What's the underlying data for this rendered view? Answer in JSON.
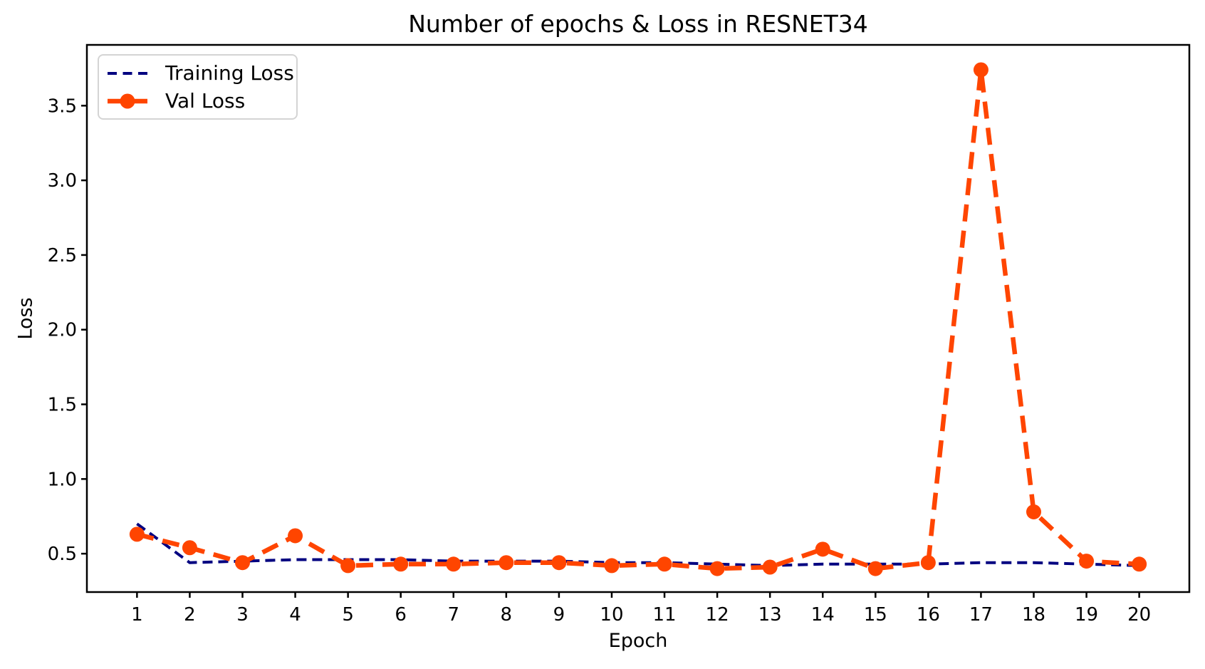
{
  "chart_data": {
    "type": "line",
    "title": "Number of epochs & Loss in RESNET34",
    "xlabel": "Epoch",
    "ylabel": "Loss",
    "x": [
      1,
      2,
      3,
      4,
      5,
      6,
      7,
      8,
      9,
      10,
      11,
      12,
      13,
      14,
      15,
      16,
      17,
      18,
      19,
      20
    ],
    "series": [
      {
        "name": "Training Loss",
        "color": "#000080",
        "line_style": "dashed",
        "line_width": 4,
        "dash": "14 8",
        "marker": "none",
        "values": [
          0.7,
          0.44,
          0.45,
          0.46,
          0.46,
          0.46,
          0.45,
          0.45,
          0.45,
          0.44,
          0.44,
          0.43,
          0.42,
          0.43,
          0.43,
          0.43,
          0.44,
          0.44,
          0.43,
          0.42
        ]
      },
      {
        "name": "Val Loss",
        "color": "#FF4500",
        "line_style": "dashed",
        "line_width": 6.5,
        "dash": "24 13",
        "marker": "circle",
        "marker_size": 10.5,
        "values": [
          0.63,
          0.54,
          0.44,
          0.62,
          0.42,
          0.43,
          0.43,
          0.44,
          0.44,
          0.42,
          0.43,
          0.4,
          0.41,
          0.53,
          0.4,
          0.44,
          3.74,
          0.78,
          0.45,
          0.43
        ]
      }
    ],
    "xlim": [
      0.05,
      20.95
    ],
    "ylim": [
      0.243,
      3.907
    ],
    "xticks": [
      1,
      2,
      3,
      4,
      5,
      6,
      7,
      8,
      9,
      10,
      11,
      12,
      13,
      14,
      15,
      16,
      17,
      18,
      19,
      20
    ],
    "yticks": [
      0.5,
      1.0,
      1.5,
      2.0,
      2.5,
      3.0,
      3.5
    ],
    "ytick_labels": [
      "0.5",
      "1.0",
      "1.5",
      "2.0",
      "2.5",
      "3.0",
      "3.5"
    ],
    "grid": false,
    "legend_position": "upper-left",
    "axis_color": "#000000",
    "background_color": "#ffffff"
  }
}
